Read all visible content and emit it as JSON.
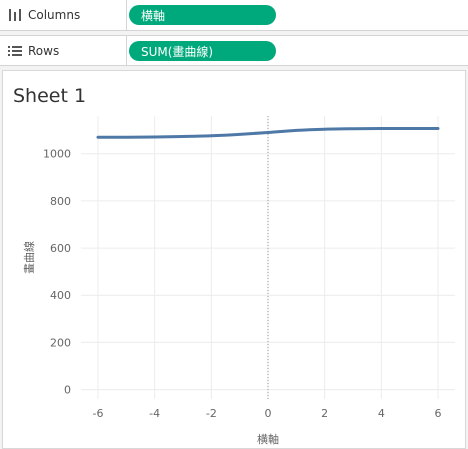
{
  "columns_shelf": {
    "label": "Columns",
    "pill": "横軸"
  },
  "rows_shelf": {
    "label": "Rows",
    "pill": "SUM(畫曲線)"
  },
  "sheet": {
    "title": "Sheet 1"
  },
  "colors": {
    "pill": "#00a97b",
    "line": "#4e79a7",
    "grid": "#ececec"
  },
  "chart_data": {
    "type": "line",
    "xlabel": "横軸",
    "ylabel": "畫曲線",
    "xlim": [
      -6.6,
      6.6
    ],
    "ylim": [
      -40,
      1160
    ],
    "xticks": [
      -6,
      -4,
      -2,
      0,
      2,
      4,
      6
    ],
    "yticks": [
      0,
      200,
      400,
      600,
      800,
      1000
    ],
    "zero_reference_line": true,
    "grid": true,
    "series": [
      {
        "x": [
          -6,
          -5,
          -4,
          -3,
          -2,
          -1,
          0,
          1,
          2,
          3,
          4,
          5,
          6
        ],
        "values": [
          1070,
          1070,
          1071,
          1073,
          1076,
          1082,
          1090,
          1099,
          1104,
          1106,
          1107,
          1107,
          1107
        ]
      }
    ]
  }
}
